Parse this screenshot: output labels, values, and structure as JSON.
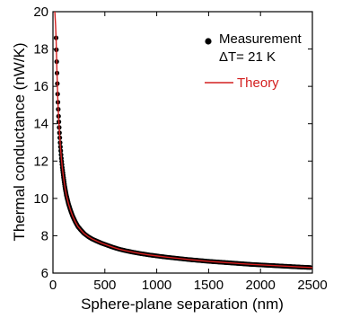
{
  "chart_data": {
    "type": "scatter",
    "xlabel": "Sphere-plane separation  (nm)",
    "ylabel": "Thermal conductance  (nW/K)",
    "xlim": [
      0,
      2500
    ],
    "ylim": [
      6,
      20
    ],
    "xticks": [
      0,
      500,
      1000,
      1500,
      2000,
      2500
    ],
    "yticks": [
      6,
      8,
      10,
      12,
      14,
      16,
      18,
      20
    ],
    "grid": false,
    "legend_position": "top-right",
    "legend": {
      "measurement_label": "Measurement",
      "measurement_label_line2": "ΔT= 21 K",
      "theory_label": "Theory"
    },
    "colors": {
      "measurement": "#000000",
      "theory": "#d42020",
      "theory_label": "#d42020"
    },
    "series": [
      {
        "name": "Measurement",
        "kind": "scatter",
        "x": [
          30,
          38,
          46,
          54,
          62,
          70,
          80,
          90,
          100,
          115,
          130,
          150,
          170,
          190,
          215,
          240,
          270,
          300,
          340,
          380,
          420,
          470,
          520,
          580,
          640,
          700,
          770,
          840,
          920,
          1000,
          1100,
          1200,
          1300,
          1400,
          1500,
          1600,
          1700,
          1800,
          1900,
          2000,
          2100,
          2200,
          2300,
          2400,
          2480
        ],
        "y": [
          18.6,
          16.9,
          15.4,
          14.4,
          13.6,
          12.9,
          12.2,
          11.65,
          11.2,
          10.6,
          10.15,
          9.7,
          9.35,
          9.05,
          8.75,
          8.5,
          8.3,
          8.12,
          7.95,
          7.82,
          7.72,
          7.6,
          7.5,
          7.38,
          7.28,
          7.2,
          7.12,
          7.05,
          6.98,
          6.92,
          6.85,
          6.79,
          6.73,
          6.68,
          6.63,
          6.59,
          6.55,
          6.51,
          6.47,
          6.44,
          6.41,
          6.38,
          6.35,
          6.32,
          6.3
        ]
      },
      {
        "name": "Theory",
        "kind": "line",
        "x": [
          18,
          25,
          30,
          38,
          46,
          54,
          62,
          70,
          80,
          90,
          100,
          115,
          130,
          150,
          170,
          190,
          215,
          240,
          270,
          300,
          340,
          380,
          420,
          470,
          520,
          580,
          640,
          700,
          770,
          840,
          920,
          1000,
          1100,
          1200,
          1300,
          1400,
          1500,
          1600,
          1700,
          1800,
          1900,
          2000,
          2100,
          2200,
          2300,
          2400,
          2500
        ],
        "y": [
          20.0,
          19.3,
          18.6,
          16.9,
          15.4,
          14.4,
          13.6,
          12.9,
          12.2,
          11.65,
          11.2,
          10.6,
          10.15,
          9.7,
          9.35,
          9.05,
          8.75,
          8.5,
          8.3,
          8.12,
          7.95,
          7.82,
          7.72,
          7.6,
          7.5,
          7.38,
          7.28,
          7.2,
          7.12,
          7.05,
          6.98,
          6.92,
          6.85,
          6.79,
          6.73,
          6.68,
          6.63,
          6.59,
          6.55,
          6.51,
          6.47,
          6.44,
          6.41,
          6.38,
          6.35,
          6.32,
          6.29
        ]
      }
    ]
  }
}
